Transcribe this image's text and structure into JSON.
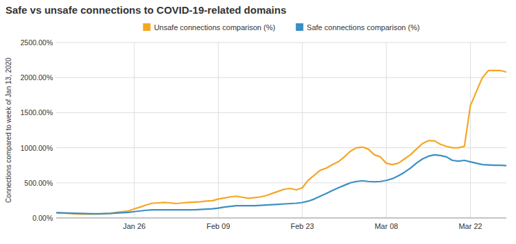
{
  "chart_data": {
    "type": "line",
    "title": "Safe vs unsafe connections to COVID-19-related domains",
    "y_label": "Connections compared to week of Jan 13, 2020",
    "x": [
      0,
      1,
      2,
      3,
      4,
      5,
      6,
      7,
      8,
      9,
      10,
      11,
      12,
      13,
      14,
      15,
      16,
      17,
      18,
      19,
      20,
      21,
      22,
      23,
      24,
      25,
      26,
      27,
      28,
      29,
      30,
      31,
      32,
      33,
      34,
      35,
      36,
      37,
      38,
      39,
      40,
      41,
      42,
      43,
      44,
      45,
      46,
      47,
      48,
      49,
      50,
      51,
      52,
      53,
      54,
      55,
      56,
      57,
      58,
      59,
      60,
      61,
      62,
      63,
      64,
      65,
      66,
      67,
      68,
      69,
      70,
      71,
      72,
      73,
      74,
      75
    ],
    "series": [
      {
        "name": "Unsafe connections comparison (%)",
        "color": "#F5A623",
        "values": [
          75,
          70,
          65,
          60,
          55,
          55,
          55,
          55,
          60,
          65,
          80,
          90,
          100,
          130,
          155,
          185,
          210,
          215,
          220,
          215,
          205,
          215,
          220,
          225,
          230,
          240,
          245,
          270,
          285,
          300,
          310,
          295,
          280,
          290,
          300,
          320,
          350,
          380,
          410,
          420,
          400,
          430,
          540,
          610,
          680,
          710,
          760,
          800,
          870,
          950,
          1000,
          1010,
          980,
          900,
          870,
          780,
          760,
          780,
          840,
          900,
          980,
          1060,
          1100,
          1100,
          1050,
          1020,
          1000,
          1000,
          1020,
          1600,
          1800,
          2000,
          2100,
          2100,
          2100,
          2080
        ]
      },
      {
        "name": "Safe connections comparison (%)",
        "color": "#3A8FC4",
        "values": [
          75,
          72,
          70,
          68,
          65,
          62,
          60,
          60,
          62,
          65,
          70,
          75,
          80,
          90,
          100,
          110,
          115,
          115,
          115,
          115,
          115,
          115,
          115,
          115,
          120,
          125,
          130,
          140,
          155,
          165,
          175,
          175,
          175,
          175,
          180,
          185,
          190,
          195,
          200,
          205,
          210,
          220,
          240,
          270,
          310,
          350,
          390,
          430,
          465,
          500,
          520,
          530,
          520,
          515,
          520,
          535,
          560,
          600,
          650,
          710,
          780,
          840,
          880,
          900,
          890,
          870,
          820,
          810,
          820,
          800,
          780,
          760,
          755,
          750,
          750,
          745
        ]
      }
    ],
    "xlim": [
      0,
      75
    ],
    "xticks": [
      {
        "value": 13,
        "label": "Jan 26"
      },
      {
        "value": 27,
        "label": "Feb 09"
      },
      {
        "value": 41,
        "label": "Feb 23"
      },
      {
        "value": 55,
        "label": "Mar 08"
      },
      {
        "value": 69,
        "label": "Mar 22"
      }
    ],
    "ylim": [
      0,
      2500
    ],
    "yticks": [
      {
        "value": 0,
        "label": "0.00%"
      },
      {
        "value": 500,
        "label": "500.00%"
      },
      {
        "value": 1000,
        "label": "1000.00%"
      },
      {
        "value": 1500,
        "label": "1500.00%"
      },
      {
        "value": 2000,
        "label": "2000.00%"
      },
      {
        "value": 2500,
        "label": "2500.00%"
      }
    ],
    "grid": true,
    "legend": "top"
  }
}
